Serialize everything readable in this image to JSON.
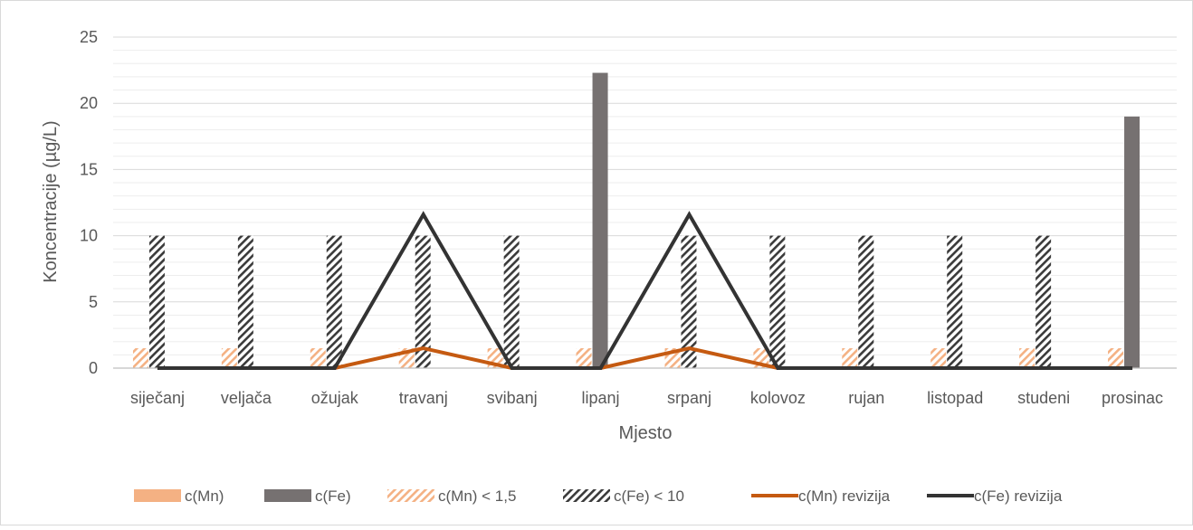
{
  "chart_data": {
    "type": "bar",
    "categories": [
      "siječanj",
      "veljača",
      "ožujak",
      "travanj",
      "svibanj",
      "lipanj",
      "srpanj",
      "kolovoz",
      "rujan",
      "listopad",
      "studeni",
      "prosinac"
    ],
    "xlabel": "Mjesto",
    "ylabel": "Koncentracije (µg/L)",
    "ylim": [
      0,
      25
    ],
    "yticks": [
      0,
      5,
      10,
      15,
      20,
      25
    ],
    "grid": true,
    "legend": "bottom",
    "series": [
      {
        "name": "c(Mn)",
        "kind": "bar",
        "style": "solid",
        "color": "#f4b183",
        "values": [
          0,
          0,
          0,
          0,
          0,
          0,
          0,
          0,
          0,
          0,
          0,
          0
        ]
      },
      {
        "name": "c(Fe)",
        "kind": "bar",
        "style": "solid",
        "color": "#767171",
        "values": [
          0,
          0,
          0,
          0,
          0,
          22.3,
          0,
          0,
          0,
          0,
          0,
          19.0
        ]
      },
      {
        "name": "c(Mn) < 1,5",
        "kind": "bar",
        "style": "hatched",
        "color": "#f4b183",
        "values": [
          1.5,
          1.5,
          1.5,
          1.5,
          1.5,
          1.5,
          1.5,
          1.5,
          1.5,
          1.5,
          1.5,
          1.5
        ]
      },
      {
        "name": "c(Fe) < 10",
        "kind": "bar",
        "style": "hatched",
        "color": "#3a3a3a",
        "values": [
          10,
          10,
          10,
          10,
          10,
          0,
          10,
          10,
          10,
          10,
          10,
          0
        ]
      },
      {
        "name": "c(Mn) revizija",
        "kind": "line",
        "color": "#c55a11",
        "values": [
          0,
          0,
          0,
          1.5,
          0,
          0,
          1.5,
          0,
          0,
          0,
          0,
          0
        ]
      },
      {
        "name": "c(Fe) revizija",
        "kind": "line",
        "color": "#333333",
        "values": [
          0,
          0,
          0,
          11.6,
          0,
          0,
          11.6,
          0,
          0,
          0,
          0,
          0
        ]
      }
    ]
  }
}
